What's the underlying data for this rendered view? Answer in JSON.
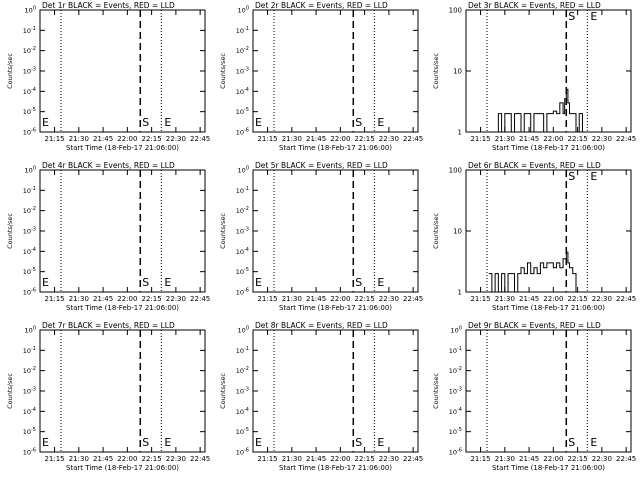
{
  "window": {
    "title": ""
  },
  "axes": {
    "x_ticks": [
      "21:15",
      "21:30",
      "21:45",
      "22:00",
      "22:15",
      "22:30",
      "22:45"
    ],
    "xlabel": "Start Time (18-Feb-17 21:06:00)",
    "ylabel": "Counts/sec"
  },
  "chart_data": [
    {
      "type": "line",
      "title": "Det 1r BLACK = Events, RED = LLD",
      "yscale": "log",
      "yticks": [
        "10^0",
        "10^-1",
        "10^-2",
        "10^-3",
        "10^-4",
        "10^-5",
        "10^-6"
      ],
      "ylim": [
        1e-06,
        1
      ],
      "grid": false,
      "markers": {
        "S": "22:08",
        "E": "22:21",
        "left_E": true
      },
      "vlines": {
        "dotted": [
          "21:19",
          "22:21"
        ],
        "dashed": [
          "22:08"
        ]
      },
      "series": []
    },
    {
      "type": "line",
      "title": "Det 2r BLACK = Events, RED = LLD",
      "yscale": "log",
      "yticks": [
        "10^0",
        "10^-1",
        "10^-2",
        "10^-3",
        "10^-4",
        "10^-5",
        "10^-6"
      ],
      "ylim": [
        1e-06,
        1
      ],
      "grid": false,
      "markers": {
        "S": "22:08",
        "E": "22:21",
        "left_E": true
      },
      "vlines": {
        "dotted": [
          "21:19",
          "22:21"
        ],
        "dashed": [
          "22:08"
        ]
      },
      "series": []
    },
    {
      "type": "line",
      "title": "Det 3r BLACK = Events, RED = LLD",
      "yscale": "log",
      "yticks": [
        "100",
        "10",
        "1"
      ],
      "ylim": [
        1,
        100
      ],
      "grid": false,
      "markers": {
        "S": "22:08",
        "E": "22:21",
        "left_E": false
      },
      "vlines": {
        "dotted": [
          "21:19",
          "22:21"
        ],
        "dashed": [
          "22:08"
        ]
      },
      "series": [
        {
          "x": [
            "21:24",
            "21:26",
            "21:28",
            "21:30",
            "21:32",
            "21:34",
            "21:36",
            "21:38",
            "21:40",
            "21:42",
            "21:44",
            "21:46",
            "21:48",
            "21:50",
            "21:52",
            "21:54",
            "21:56",
            "21:58",
            "22:00",
            "22:02",
            "22:04",
            "22:06",
            "22:07",
            "22:08",
            "22:09",
            "22:10",
            "22:12",
            "22:14",
            "22:16",
            "22:18"
          ],
          "values": [
            1,
            2,
            1,
            2,
            2,
            1,
            2,
            2,
            1,
            2,
            2,
            1,
            2,
            2,
            2,
            1,
            2,
            2,
            2.2,
            2,
            3,
            2,
            3.5,
            5,
            3,
            2,
            2,
            1,
            2,
            1
          ]
        }
      ]
    },
    {
      "type": "line",
      "title": "Det 4r BLACK = Events, RED = LLD",
      "yscale": "log",
      "yticks": [
        "10^0",
        "10^-1",
        "10^-2",
        "10^-3",
        "10^-4",
        "10^-5",
        "10^-6"
      ],
      "ylim": [
        1e-06,
        1
      ],
      "grid": false,
      "markers": {
        "S": "22:08",
        "E": "22:21",
        "left_E": true
      },
      "vlines": {
        "dotted": [
          "21:19",
          "22:21"
        ],
        "dashed": [
          "22:08"
        ]
      },
      "series": []
    },
    {
      "type": "line",
      "title": "Det 5r BLACK = Events, RED = LLD",
      "yscale": "log",
      "yticks": [
        "10^0",
        "10^-1",
        "10^-2",
        "10^-3",
        "10^-4",
        "10^-5",
        "10^-6"
      ],
      "ylim": [
        1e-06,
        1
      ],
      "grid": false,
      "markers": {
        "S": "22:08",
        "E": "22:21",
        "left_E": true
      },
      "vlines": {
        "dotted": [
          "21:19",
          "22:21"
        ],
        "dashed": [
          "22:08"
        ]
      },
      "series": []
    },
    {
      "type": "line",
      "title": "Det 6r BLACK = Events, RED = LLD",
      "yscale": "log",
      "yticks": [
        "100",
        "10",
        "1"
      ],
      "ylim": [
        1,
        100
      ],
      "grid": false,
      "markers": {
        "S": "22:08",
        "E": "22:21",
        "left_E": false
      },
      "vlines": {
        "dotted": [
          "21:19",
          "22:21"
        ],
        "dashed": [
          "22:08"
        ]
      },
      "series": [
        {
          "x": [
            "21:20",
            "21:22",
            "21:24",
            "21:26",
            "21:28",
            "21:30",
            "21:32",
            "21:34",
            "21:36",
            "21:38",
            "21:40",
            "21:42",
            "21:44",
            "21:46",
            "21:48",
            "21:50",
            "21:52",
            "21:54",
            "21:56",
            "21:58",
            "22:00",
            "22:02",
            "22:04",
            "22:06",
            "22:08",
            "22:09",
            "22:10",
            "22:12",
            "22:14",
            "22:16"
          ],
          "values": [
            2,
            1,
            2,
            1,
            2,
            1,
            2,
            2,
            1,
            2,
            2.5,
            2,
            3,
            2,
            2.5,
            2,
            3,
            2.5,
            3,
            3,
            2.5,
            3,
            2.5,
            3.5,
            4.5,
            3,
            2.5,
            2,
            1,
            1
          ]
        }
      ]
    },
    {
      "type": "line",
      "title": "Det 7r BLACK = Events, RED = LLD",
      "yscale": "log",
      "yticks": [
        "10^0",
        "10^-1",
        "10^-2",
        "10^-3",
        "10^-4",
        "10^-5",
        "10^-6"
      ],
      "ylim": [
        1e-06,
        1
      ],
      "grid": false,
      "markers": {
        "S": "22:08",
        "E": "22:21",
        "left_E": true
      },
      "vlines": {
        "dotted": [
          "21:19",
          "22:21"
        ],
        "dashed": [
          "22:08"
        ]
      },
      "series": []
    },
    {
      "type": "line",
      "title": "Det 8r BLACK = Events, RED = LLD",
      "yscale": "log",
      "yticks": [
        "10^0",
        "10^-1",
        "10^-2",
        "10^-3",
        "10^-4",
        "10^-5",
        "10^-6"
      ],
      "ylim": [
        1e-06,
        1
      ],
      "grid": false,
      "markers": {
        "S": "22:08",
        "E": "22:21",
        "left_E": true
      },
      "vlines": {
        "dotted": [
          "21:19",
          "22:21"
        ],
        "dashed": [
          "22:08"
        ]
      },
      "series": []
    },
    {
      "type": "line",
      "title": "Det 9r BLACK = Events, RED = LLD",
      "yscale": "log",
      "yticks": [
        "10^0",
        "10^-1",
        "10^-2",
        "10^-3",
        "10^-4",
        "10^-5",
        "10^-6"
      ],
      "ylim": [
        1e-06,
        1
      ],
      "grid": false,
      "markers": {
        "S": "22:08",
        "E": "22:21",
        "left_E": false
      },
      "vlines": {
        "dotted": [
          "21:19",
          "22:21"
        ],
        "dashed": [
          "22:08"
        ]
      },
      "series": []
    }
  ]
}
